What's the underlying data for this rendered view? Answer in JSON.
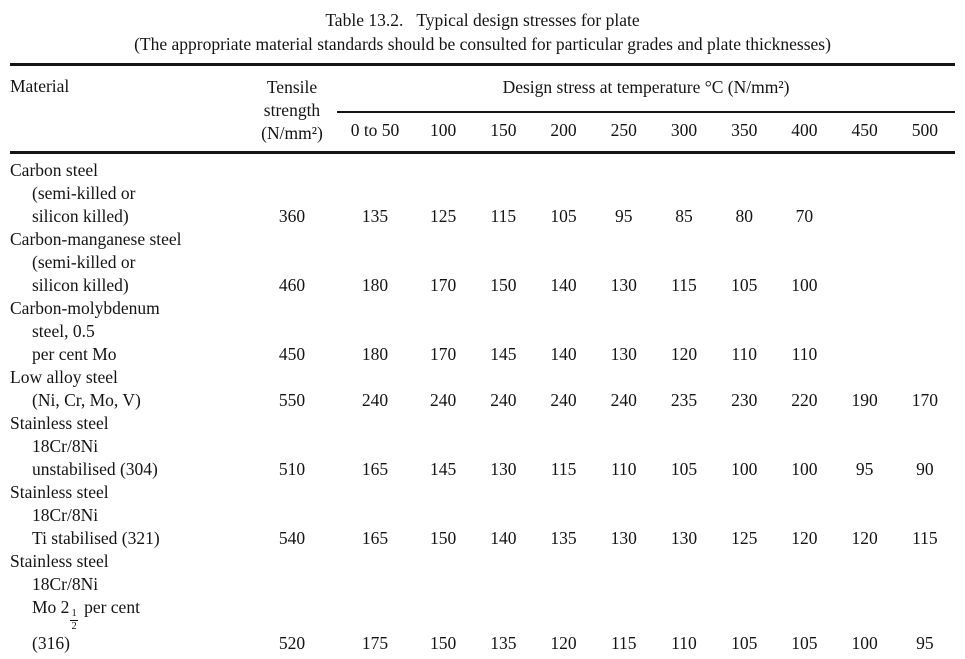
{
  "page": {
    "title_label": "Table 13.2.",
    "title_text": "Typical design stresses for plate",
    "subtitle": "(The appropriate material standards should be consulted for particular grades and plate thicknesses)"
  },
  "colors": {
    "ink": "#141414",
    "rule": "#151515",
    "background": "#ffffff"
  },
  "table": {
    "material_header": "Material",
    "tensile_header_lines": [
      "Tensile",
      "strength",
      "(N/mm²)"
    ],
    "design_stress_header": "Design stress at temperature °C (N/mm²)",
    "temp_columns": [
      "0 to 50",
      "100",
      "150",
      "200",
      "250",
      "300",
      "350",
      "400",
      "450",
      "500"
    ],
    "rows": [
      {
        "material_lines": [
          "Carbon steel",
          "(semi-killed or",
          "silicon killed)"
        ],
        "tensile": "360",
        "stresses": [
          "135",
          "125",
          "115",
          "105",
          "95",
          "85",
          "80",
          "70",
          "",
          ""
        ]
      },
      {
        "material_lines": [
          "Carbon-manganese steel",
          "(semi-killed or",
          "silicon killed)"
        ],
        "tensile": "460",
        "stresses": [
          "180",
          "170",
          "150",
          "140",
          "130",
          "115",
          "105",
          "100",
          "",
          ""
        ]
      },
      {
        "material_lines": [
          "Carbon-molybdenum",
          "steel, 0.5",
          "per cent Mo"
        ],
        "tensile": "450",
        "stresses": [
          "180",
          "170",
          "145",
          "140",
          "130",
          "120",
          "110",
          "110",
          "",
          ""
        ]
      },
      {
        "material_lines": [
          "Low alloy steel",
          "(Ni, Cr, Mo, V)"
        ],
        "tensile": "550",
        "stresses": [
          "240",
          "240",
          "240",
          "240",
          "240",
          "235",
          "230",
          "220",
          "190",
          "170"
        ]
      },
      {
        "material_lines": [
          "Stainless steel",
          "18Cr/8Ni",
          "unstabilised (304)"
        ],
        "tensile": "510",
        "stresses": [
          "165",
          "145",
          "130",
          "115",
          "110",
          "105",
          "100",
          "100",
          "95",
          "90"
        ]
      },
      {
        "material_lines": [
          "Stainless steel",
          "18Cr/8Ni",
          "Ti stabilised (321)"
        ],
        "tensile": "540",
        "stresses": [
          "165",
          "150",
          "140",
          "135",
          "130",
          "130",
          "125",
          "120",
          "120",
          "115"
        ]
      },
      {
        "material_lines": [
          "Stainless steel",
          "18Cr/8Ni",
          "Mo 2½ per cent",
          "(316)"
        ],
        "tensile": "520",
        "stresses": [
          "175",
          "150",
          "135",
          "120",
          "115",
          "110",
          "105",
          "105",
          "100",
          "95"
        ]
      }
    ]
  }
}
